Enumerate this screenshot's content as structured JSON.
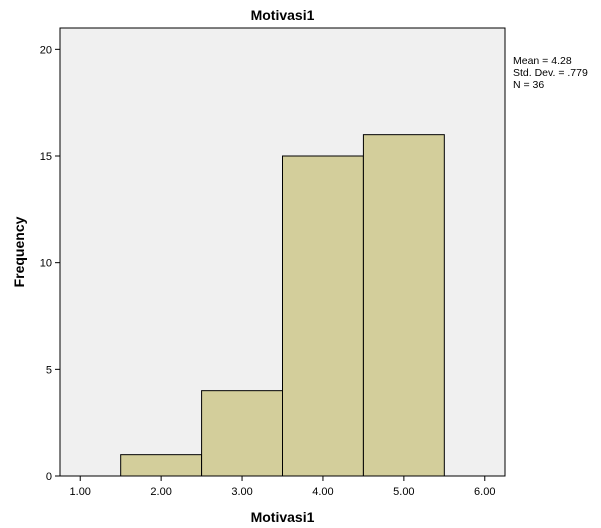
{
  "chart_data": {
    "type": "bar",
    "title": "Motivasi1",
    "xlabel": "Motivasi1",
    "ylabel": "Frequency",
    "xlim": [
      0.75,
      6.25
    ],
    "ylim": [
      0,
      21
    ],
    "x_ticks": [
      "1.00",
      "2.00",
      "3.00",
      "4.00",
      "5.00",
      "6.00"
    ],
    "y_ticks": [
      "0",
      "5",
      "10",
      "15",
      "20"
    ],
    "bins": [
      {
        "from": 1.5,
        "to": 2.5,
        "value": 1
      },
      {
        "from": 2.5,
        "to": 3.5,
        "value": 4
      },
      {
        "from": 3.5,
        "to": 4.5,
        "value": 15
      },
      {
        "from": 4.5,
        "to": 5.5,
        "value": 16
      }
    ],
    "stats": {
      "mean": "Mean = 4.28",
      "std": "Std. Dev. = .779",
      "n": "N = 36"
    },
    "colors": {
      "bar_fill": "#d3ce9b",
      "bar_stroke": "#000000",
      "plot_bg": "#f0f0f0"
    },
    "grid": false,
    "legend": "none"
  }
}
